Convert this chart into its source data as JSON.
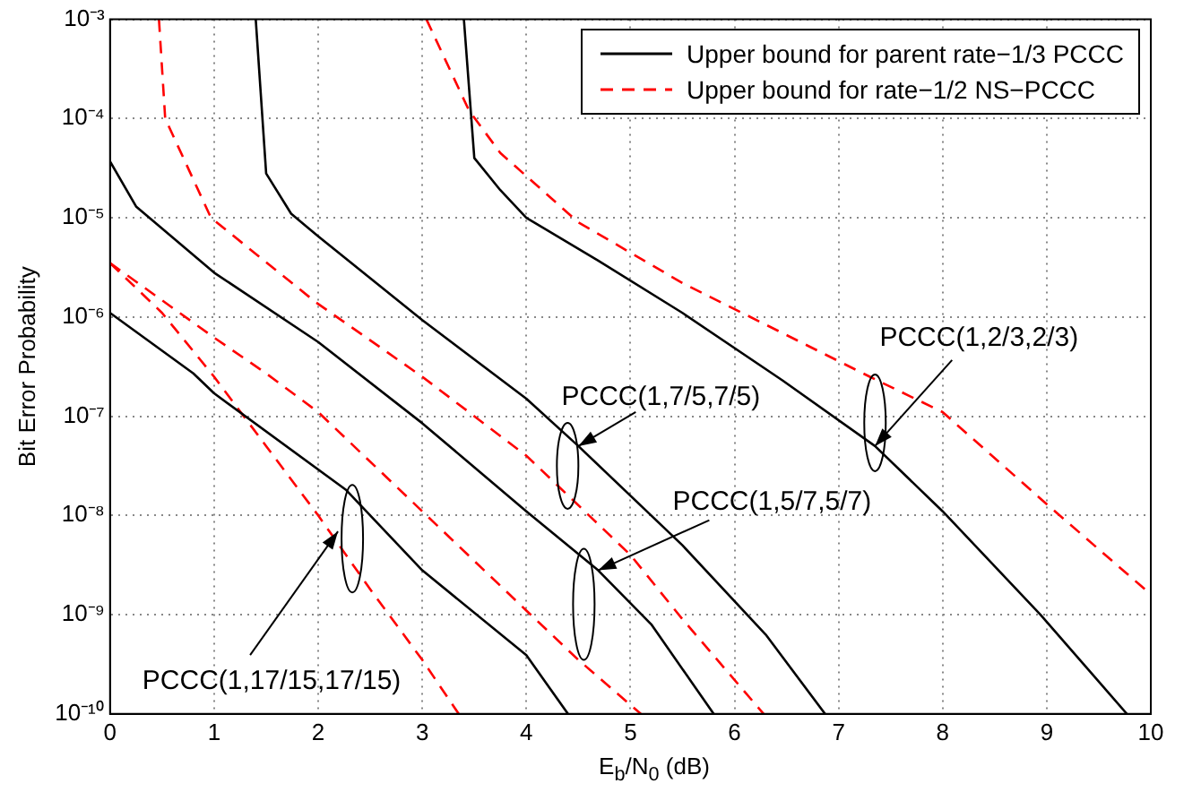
{
  "chart_data": {
    "type": "line",
    "xlabel": "E$_{b}$/N$_{0}$ (dB)",
    "ylabel": "Bit Error Probability",
    "log": "y",
    "grid": true,
    "legend": "top right",
    "marker": "none",
    "xlim": [
      0,
      10
    ],
    "xticks": [
      0,
      1,
      2,
      3,
      4,
      5,
      6,
      7,
      8,
      9,
      10
    ],
    "ylim": [
      1e-10,
      0.001
    ],
    "yticks": [
      {
        "value": 1e-10,
        "label": "10⁻¹⁰"
      },
      {
        "value": 1e-09,
        "label": "10⁻⁹"
      },
      {
        "value": 1e-08,
        "label": "10⁻⁸"
      },
      {
        "value": 1e-07,
        "label": "10⁻⁷"
      },
      {
        "value": 1e-06,
        "label": "10⁻⁶"
      },
      {
        "value": 1e-05,
        "label": "10⁻⁵"
      },
      {
        "value": 0.0001,
        "label": "10⁻⁴"
      },
      {
        "value": 0.001,
        "label": "10⁻³"
      }
    ],
    "series": [
      {
        "name": "Upper bound for parent rate−1/3 PCCC",
        "color": "#000000",
        "line_style": "solid",
        "x": [
          0,
          0.8,
          1,
          2.27,
          3,
          4,
          4.4
        ],
        "values": [
          1.1e-06,
          2.7e-07,
          1.7e-07,
          1.8e-08,
          2.8e-09,
          3.9e-10,
          1e-10
        ]
      },
      {
        "name": "Upper bound for rate−1/2 NS−PCCC",
        "color": "#ff0000",
        "line_style": "dashed",
        "x": [
          0,
          0.5,
          1,
          1.5,
          2,
          2.5,
          3,
          3.35
        ],
        "values": [
          3.5e-06,
          1.1e-06,
          2.5e-07,
          5e-08,
          1e-08,
          1.8e-09,
          3.5e-10,
          1e-10
        ]
      },
      {
        "color": "#ff0000",
        "line_style": "dashed",
        "x": [
          0,
          1,
          1.5,
          2,
          3,
          4,
          4.5,
          5.1
        ],
        "values": [
          3.5e-06,
          6.2e-07,
          2.7e-07,
          1.1e-07,
          1.1e-08,
          1.1e-09,
          3.5e-10,
          1e-10
        ]
      },
      {
        "color": "#000000",
        "line_style": "solid",
        "x": [
          0,
          0.25,
          1,
          2,
          3,
          4,
          4.69,
          5.2,
          5.8
        ],
        "values": [
          3.7e-05,
          1.3e-05,
          2.8e-06,
          5.6e-07,
          8.5e-08,
          1.1e-08,
          2.8e-09,
          8e-10,
          1e-10
        ]
      },
      {
        "color": "#ff0000",
        "line_style": "dashed",
        "x": [
          0.47,
          0.53,
          0.97,
          1.98,
          3,
          4,
          5,
          5.5,
          6.28
        ],
        "values": [
          0.001,
          0.0001,
          1e-05,
          1.4e-06,
          2.5e-07,
          4e-08,
          4e-09,
          9e-10,
          1e-10
        ]
      },
      {
        "color": "#000000",
        "line_style": "solid",
        "x": [
          1.4,
          1.5,
          1.74,
          2,
          3,
          4,
          4.5,
          5.5,
          6.3,
          6.87
        ],
        "values": [
          0.001,
          2.8e-05,
          1.1e-05,
          6.5e-06,
          9.3e-07,
          1.5e-07,
          5e-08,
          5e-09,
          6.3e-10,
          1e-10
        ]
      },
      {
        "color": "#ff0000",
        "line_style": "dashed",
        "x": [
          3.04,
          3.45,
          3.75,
          4.5,
          5.5,
          6.46,
          7.3,
          8,
          9,
          10
        ],
        "values": [
          0.001,
          0.00012,
          4.5e-05,
          9e-06,
          2.2e-06,
          6.9e-07,
          2.5e-07,
          1.1e-07,
          1.3e-08,
          1.6e-09
        ]
      },
      {
        "color": "#000000",
        "line_style": "solid",
        "x": [
          3.4,
          3.5,
          3.75,
          4,
          4.69,
          5.5,
          6.46,
          7.35,
          8,
          8.94,
          9.77
        ],
        "values": [
          0.001,
          4e-05,
          1.9e-05,
          1e-05,
          3.7e-06,
          1.1e-06,
          2.3e-07,
          5e-08,
          1.1e-08,
          1e-09,
          1e-10
        ]
      }
    ],
    "annotations": [
      {
        "text": "PCCC(1,17/15,17/15)",
        "x": 2.19,
        "y": 6.9e-09
      },
      {
        "text": "PCCC(1,7/5,7/5)",
        "x": 4.5,
        "y": 5e-08
      },
      {
        "text": "PCCC(1,5/7,5/7)",
        "x": 4.69,
        "y": 2.8e-09
      },
      {
        "text": "PCCC(1,2/3,2/3)",
        "x": 7.35,
        "y": 5e-08
      }
    ]
  }
}
